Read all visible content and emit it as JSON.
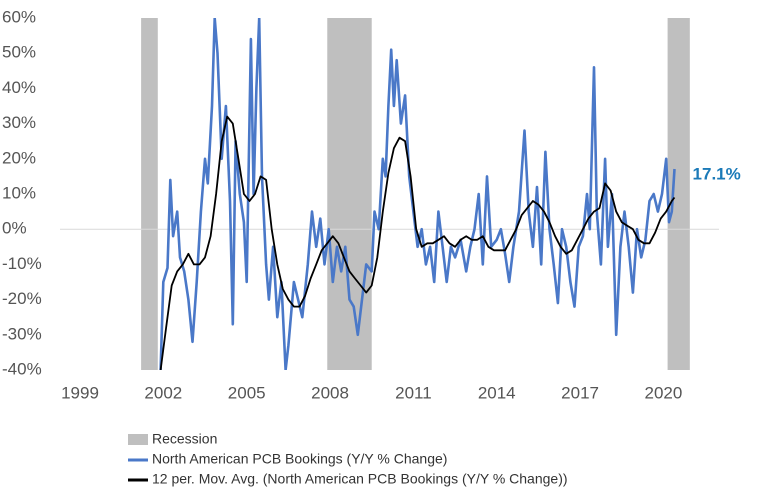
{
  "chart_data": {
    "type": "line",
    "xlim": [
      1999,
      2022
    ],
    "xticks": [
      1999,
      2002,
      2005,
      2008,
      2011,
      2014,
      2017,
      2020
    ],
    "ylim": [
      -40,
      60
    ],
    "yticks": [
      {
        "value": -40,
        "label": "-40%"
      },
      {
        "value": -30,
        "label": "-30%"
      },
      {
        "value": -20,
        "label": "-20%"
      },
      {
        "value": -10,
        "label": "-10%"
      },
      {
        "value": 0,
        "label": "0%"
      },
      {
        "value": 10,
        "label": "10%"
      },
      {
        "value": 20,
        "label": "20%"
      },
      {
        "value": 30,
        "label": "30%"
      },
      {
        "value": 40,
        "label": "40%"
      },
      {
        "value": 50,
        "label": "50%"
      },
      {
        "value": 60,
        "label": "60%"
      }
    ],
    "recession": {
      "name": "Recession",
      "color": "#bfbfbf",
      "spans": [
        [
          2001.2,
          2001.8
        ],
        [
          2007.9,
          2009.5
        ],
        [
          2020.15,
          2020.95
        ]
      ]
    },
    "series": [
      {
        "name": "North American PCB Bookings (Y/Y % Change)",
        "color": "#4a78c8",
        "x": [
          2001.9,
          2002.0,
          2002.15,
          2002.25,
          2002.35,
          2002.5,
          2002.6,
          2002.75,
          2002.9,
          2003.05,
          2003.2,
          2003.35,
          2003.5,
          2003.6,
          2003.75,
          2003.85,
          2003.95,
          2004.1,
          2004.25,
          2004.4,
          2004.5,
          2004.6,
          2004.75,
          2004.9,
          2005.0,
          2005.15,
          2005.25,
          2005.35,
          2005.45,
          2005.55,
          2005.7,
          2005.8,
          2005.95,
          2006.1,
          2006.25,
          2006.4,
          2006.5,
          2006.7,
          2006.85,
          2007.0,
          2007.2,
          2007.35,
          2007.5,
          2007.65,
          2007.8,
          2007.95,
          2008.1,
          2008.25,
          2008.4,
          2008.55,
          2008.7,
          2008.85,
          2009.0,
          2009.15,
          2009.3,
          2009.5,
          2009.6,
          2009.75,
          2009.9,
          2010.0,
          2010.1,
          2010.2,
          2010.3,
          2010.4,
          2010.55,
          2010.7,
          2010.85,
          2011.0,
          2011.15,
          2011.3,
          2011.45,
          2011.6,
          2011.75,
          2011.9,
          2012.05,
          2012.2,
          2012.35,
          2012.5,
          2012.7,
          2012.9,
          2013.05,
          2013.2,
          2013.35,
          2013.5,
          2013.65,
          2013.8,
          2014.0,
          2014.15,
          2014.3,
          2014.45,
          2014.6,
          2014.8,
          2015.0,
          2015.15,
          2015.3,
          2015.45,
          2015.6,
          2015.75,
          2015.9,
          2016.05,
          2016.2,
          2016.35,
          2016.5,
          2016.65,
          2016.8,
          2016.95,
          2017.1,
          2017.25,
          2017.35,
          2017.5,
          2017.6,
          2017.75,
          2017.9,
          2018.0,
          2018.15,
          2018.3,
          2018.45,
          2018.6,
          2018.75,
          2018.9,
          2019.05,
          2019.2,
          2019.35,
          2019.5,
          2019.65,
          2019.8,
          2019.95,
          2020.1,
          2020.2,
          2020.3,
          2020.4
        ],
        "values": [
          -40,
          -15,
          -11,
          14,
          -2,
          5,
          -8,
          -12,
          -20,
          -32,
          -15,
          5,
          20,
          13,
          35,
          60,
          50,
          20,
          35,
          8,
          -27,
          25,
          10,
          2,
          -15,
          54,
          10,
          40,
          60,
          15,
          -10,
          -20,
          -5,
          -25,
          -15,
          -40,
          -33,
          -15,
          -20,
          -25,
          -10,
          5,
          -5,
          3,
          -10,
          0,
          -15,
          -5,
          -12,
          -5,
          -20,
          -22,
          -30,
          -20,
          -10,
          -12,
          5,
          0,
          20,
          15,
          35,
          51,
          35,
          48,
          30,
          38,
          15,
          5,
          -5,
          0,
          -10,
          -5,
          -15,
          5,
          -5,
          -15,
          -5,
          -8,
          -3,
          -12,
          -5,
          0,
          10,
          -10,
          15,
          -5,
          -3,
          0,
          -7,
          -15,
          -5,
          5,
          28,
          5,
          -5,
          12,
          -10,
          22,
          0,
          -10,
          -21,
          0,
          -5,
          -15,
          -22,
          -5,
          -2,
          10,
          0,
          46,
          5,
          -10,
          20,
          -5,
          10,
          -30,
          -5,
          5,
          -5,
          -18,
          0,
          -8,
          -3,
          8,
          10,
          5,
          10,
          20,
          2,
          5,
          17.1
        ]
      },
      {
        "name": "12 per. Mov. Avg. (North American PCB Bookings (Y/Y % Change))",
        "color": "#000000",
        "x": [
          2001.9,
          2002.1,
          2002.3,
          2002.5,
          2002.7,
          2002.9,
          2003.1,
          2003.3,
          2003.5,
          2003.7,
          2003.9,
          2004.1,
          2004.3,
          2004.5,
          2004.7,
          2004.9,
          2005.1,
          2005.3,
          2005.5,
          2005.7,
          2005.9,
          2006.1,
          2006.3,
          2006.5,
          2006.7,
          2006.9,
          2007.1,
          2007.3,
          2007.5,
          2007.7,
          2007.9,
          2008.1,
          2008.3,
          2008.5,
          2008.7,
          2008.9,
          2009.1,
          2009.3,
          2009.5,
          2009.7,
          2009.9,
          2010.1,
          2010.3,
          2010.5,
          2010.7,
          2010.9,
          2011.1,
          2011.3,
          2011.5,
          2011.7,
          2011.9,
          2012.1,
          2012.3,
          2012.5,
          2012.7,
          2012.9,
          2013.1,
          2013.3,
          2013.5,
          2013.7,
          2013.9,
          2014.1,
          2014.3,
          2014.5,
          2014.7,
          2014.9,
          2015.1,
          2015.3,
          2015.5,
          2015.7,
          2015.9,
          2016.1,
          2016.3,
          2016.5,
          2016.7,
          2016.9,
          2017.1,
          2017.3,
          2017.5,
          2017.7,
          2017.9,
          2018.1,
          2018.3,
          2018.5,
          2018.7,
          2018.9,
          2019.1,
          2019.3,
          2019.5,
          2019.7,
          2019.9,
          2020.1,
          2020.3,
          2020.4
        ],
        "values": [
          -40,
          -28,
          -16,
          -12,
          -10,
          -7,
          -10,
          -10,
          -8,
          -2,
          10,
          25,
          32,
          30,
          20,
          10,
          8,
          10,
          15,
          14,
          0,
          -10,
          -17,
          -20,
          -22,
          -22,
          -19,
          -14,
          -10,
          -6,
          -4,
          -2,
          -4,
          -8,
          -12,
          -14,
          -16,
          -18,
          -16,
          -8,
          5,
          16,
          23,
          26,
          25,
          15,
          0,
          -5,
          -4,
          -4,
          -3,
          -2,
          -4,
          -5,
          -3,
          -2,
          -3,
          -3,
          -2,
          -5,
          -6,
          -6,
          -6,
          -3,
          0,
          4,
          6,
          8,
          7,
          5,
          2,
          -2,
          -5,
          -7,
          -6,
          -3,
          0,
          3,
          5,
          6,
          13,
          11,
          5,
          2,
          1,
          0,
          -3,
          -4,
          -4,
          -1,
          3,
          5,
          8,
          9
        ]
      }
    ],
    "annotation": {
      "text": "17.1%",
      "x": 2020.4,
      "y": 17.1,
      "color": "#1b7ab8"
    }
  }
}
